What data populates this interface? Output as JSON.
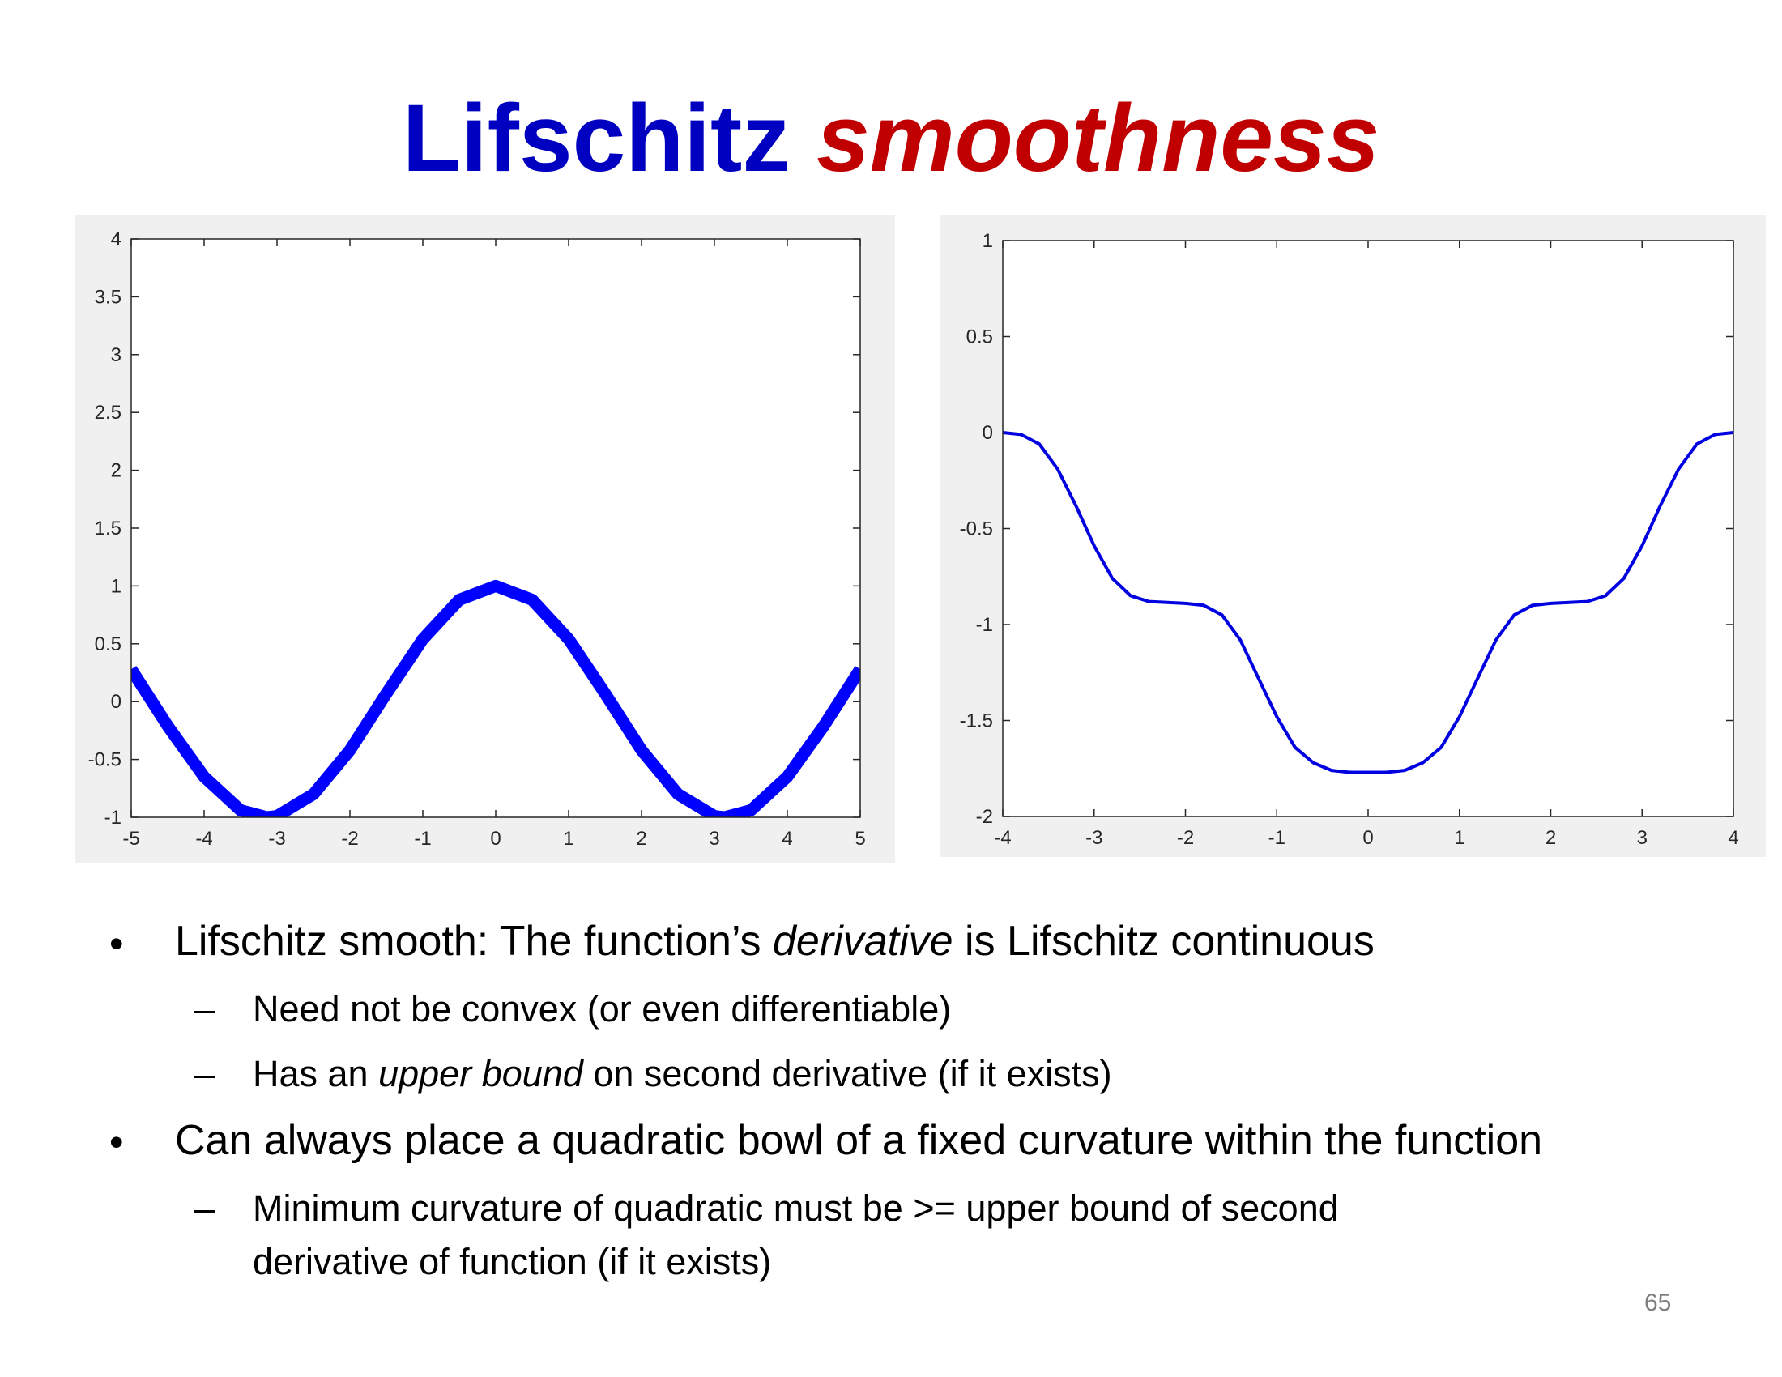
{
  "title": {
    "part1": "Lifschitz",
    "part2": "smoothness"
  },
  "chart_data": [
    {
      "type": "line",
      "xlim": [
        -5,
        5
      ],
      "ylim": [
        -1,
        4
      ],
      "xticks": [
        "-5",
        "-4",
        "-3",
        "-2",
        "-1",
        "0",
        "1",
        "2",
        "3",
        "4",
        "5"
      ],
      "yticks": [
        "4",
        "3.5",
        "3",
        "2.5",
        "2",
        "1.5",
        "1",
        "0.5",
        "0",
        "-0.5",
        "-1"
      ],
      "series": [
        {
          "color": "#0000ff",
          "x": [
            -5,
            -4.5,
            -4,
            -3.5,
            -3.14,
            -3,
            -2.5,
            -2,
            -1.5,
            -1,
            -0.5,
            0,
            0.5,
            1,
            1.5,
            2,
            2.5,
            3,
            3.14,
            3.5,
            4,
            4.5,
            5
          ],
          "y": [
            0.28,
            -0.21,
            -0.65,
            -0.94,
            -1.0,
            -0.99,
            -0.8,
            -0.42,
            0.07,
            0.54,
            0.88,
            1.0,
            0.88,
            0.54,
            0.07,
            -0.42,
            -0.8,
            -0.99,
            -1.0,
            -0.94,
            -0.65,
            -0.21,
            0.28
          ]
        }
      ],
      "grid": false
    },
    {
      "type": "line",
      "xlim": [
        -4,
        4
      ],
      "ylim": [
        -2,
        1
      ],
      "xticks": [
        "-4",
        "-3",
        "-2",
        "-1",
        "0",
        "1",
        "2",
        "3",
        "4"
      ],
      "yticks": [
        "1",
        "0.5",
        "0",
        "-0.5",
        "-1",
        "-1.5",
        "-2"
      ],
      "series": [
        {
          "color": "#0000e0",
          "x": [
            -4,
            -3.8,
            -3.6,
            -3.4,
            -3.2,
            -3.0,
            -2.8,
            -2.6,
            -2.4,
            -2.2,
            -2.0,
            -1.8,
            -1.6,
            -1.4,
            -1.2,
            -1.0,
            -0.8,
            -0.6,
            -0.4,
            -0.2,
            0,
            0.2,
            0.4,
            0.6,
            0.8,
            1.0,
            1.2,
            1.4,
            1.6,
            1.8,
            2.0,
            2.2,
            2.4,
            2.6,
            2.8,
            3.0,
            3.2,
            3.4,
            3.6,
            3.8,
            4.0
          ],
          "y": [
            0,
            -0.01,
            -0.06,
            -0.19,
            -0.38,
            -0.59,
            -0.76,
            -0.85,
            -0.88,
            -0.885,
            -0.89,
            -0.9,
            -0.95,
            -1.08,
            -1.28,
            -1.48,
            -1.64,
            -1.72,
            -1.76,
            -1.77,
            -1.77,
            -1.77,
            -1.76,
            -1.72,
            -1.64,
            -1.48,
            -1.28,
            -1.08,
            -0.95,
            -0.9,
            -0.89,
            -0.885,
            -0.88,
            -0.85,
            -0.76,
            -0.59,
            -0.38,
            -0.19,
            -0.06,
            -0.01,
            0
          ]
        }
      ],
      "grid": false
    }
  ],
  "bullets": {
    "b1_start": "Lifschitz smooth: The function’s ",
    "b1_italic": "derivative",
    "b1_end": " is Lifschitz continuous",
    "s1": "Need not be convex (or even differentiable)",
    "s2_start": "Has an ",
    "s2_italic": "upper bound",
    "s2_end": " on second derivative (if it exists)",
    "b2": "Can always place a quadratic bowl of a fixed curvature within the function",
    "s3_line1": "Minimum curvature of quadratic must be >= upper bound of second",
    "s3_line2": "derivative of function (if it exists)",
    "bullet_char": "•",
    "dash_char": "–"
  },
  "page_number": "65"
}
